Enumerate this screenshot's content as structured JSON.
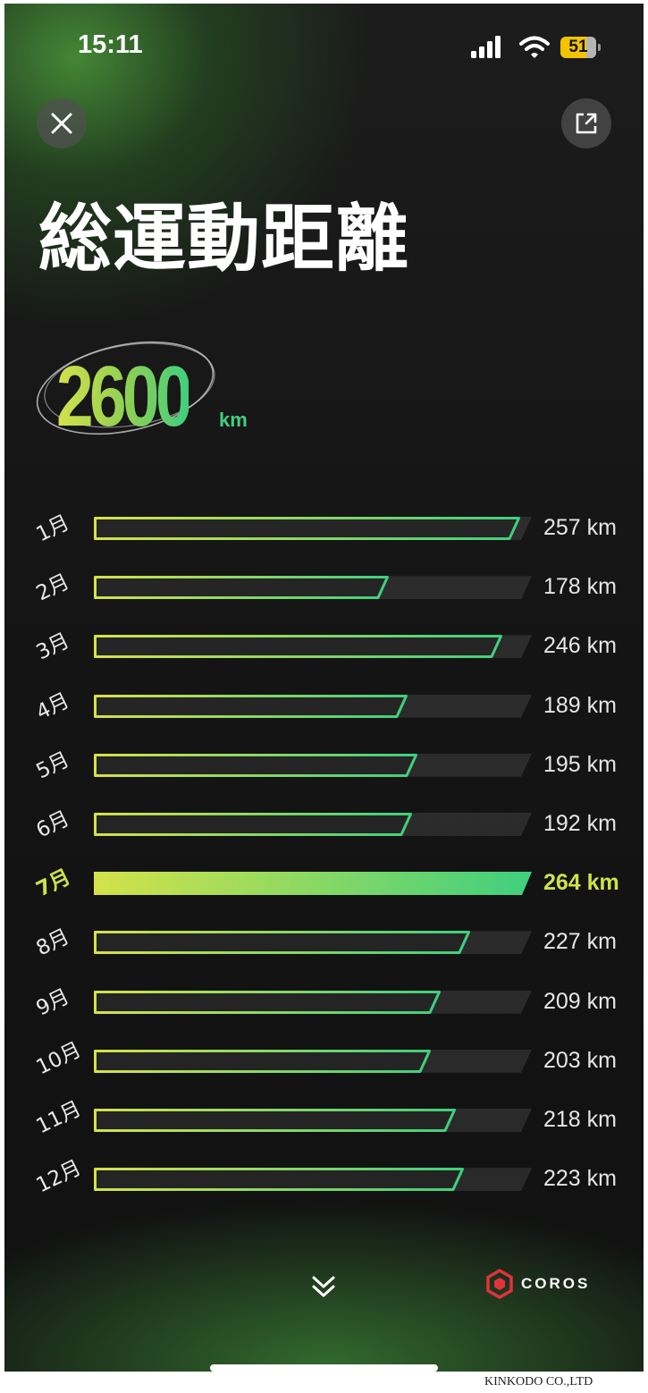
{
  "status": {
    "time": "15:11",
    "battery": "51"
  },
  "header": {
    "close_icon": "close-icon",
    "share_icon": "share-icon"
  },
  "title": "総運動距離",
  "total": {
    "value": "2600",
    "unit": "km"
  },
  "colors": {
    "grad_start": "#d4e24a",
    "grad_end": "#3fcf7e",
    "highlight": "#cde24a"
  },
  "chart_data": {
    "type": "bar",
    "orientation": "horizontal",
    "unit": "km",
    "highlight_index": 6,
    "categories": [
      "1月",
      "2月",
      "3月",
      "4月",
      "5月",
      "6月",
      "7月",
      "8月",
      "9月",
      "10月",
      "11月",
      "12月"
    ],
    "values": [
      257,
      178,
      246,
      189,
      195,
      192,
      264,
      227,
      209,
      203,
      218,
      223
    ],
    "value_labels": [
      "257 km",
      "178 km",
      "246 km",
      "189 km",
      "195 km",
      "192 km",
      "264 km",
      "227 km",
      "209 km",
      "203 km",
      "218 km",
      "223 km"
    ],
    "xlim": [
      0,
      264
    ]
  },
  "footer": {
    "brand": "COROS",
    "scroll_icon": "chevron-double-down-icon"
  },
  "caption": "KINKODO CO.,LTD"
}
